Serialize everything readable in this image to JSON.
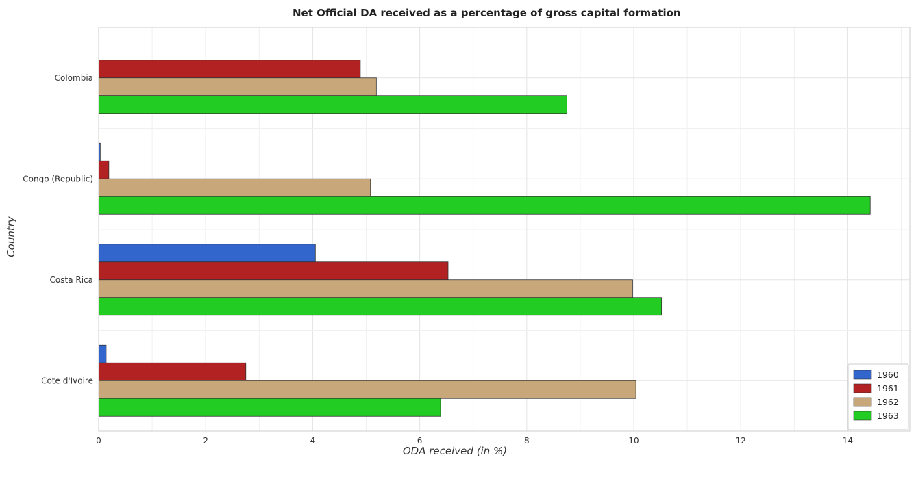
{
  "chart_data": {
    "type": "bar",
    "orientation": "horizontal",
    "title": "Net Official DA received as a percentage of gross capital formation",
    "xlabel": "ODA received (in %)",
    "ylabel": "Country",
    "xlim": [
      0,
      15.16
    ],
    "xticks": [
      0,
      2,
      4,
      6,
      8,
      10,
      12,
      14
    ],
    "grid": true,
    "legend_position": "bottom-right",
    "categories": [
      "Colombia",
      "Congo (Republic)",
      "Costa Rica",
      "Cote d'Ivoire"
    ],
    "series": [
      {
        "name": "1960",
        "color": "#3366cc",
        "values": [
          0.0,
          0.03,
          4.05,
          0.14
        ]
      },
      {
        "name": "1961",
        "color": "#b22222",
        "values": [
          4.89,
          0.19,
          6.53,
          2.75
        ]
      },
      {
        "name": "1962",
        "color": "#c8a87a",
        "values": [
          5.19,
          5.08,
          9.98,
          10.04
        ]
      },
      {
        "name": "1963",
        "color": "#22cc22",
        "values": [
          8.75,
          14.42,
          10.52,
          6.39
        ]
      }
    ]
  }
}
